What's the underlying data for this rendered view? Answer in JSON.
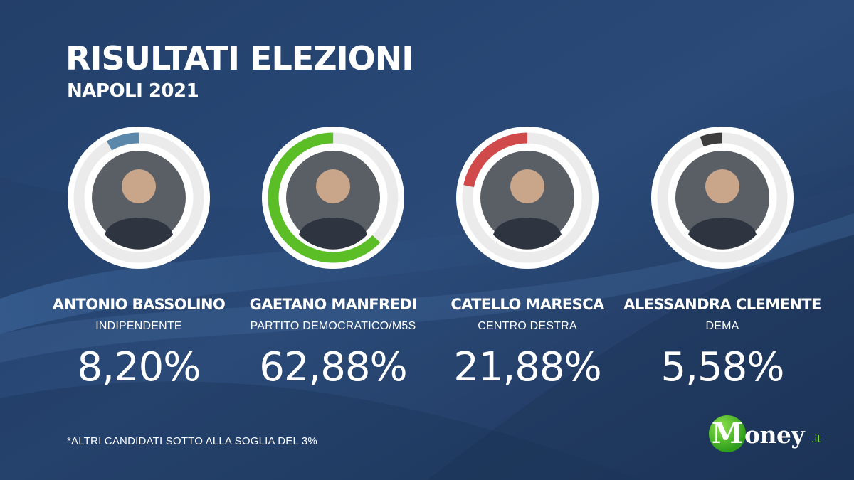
{
  "header": {
    "title": "RISULTATI ELEZIONI",
    "subtitle": "NAPOLI 2021"
  },
  "chart_data": {
    "type": "pie",
    "title": "RISULTATI ELEZIONI",
    "subtitle": "NAPOLI 2021",
    "unit": "%",
    "candidates": [
      {
        "name": "ANTONIO BASSOLINO",
        "party": "INDIPENDENTE",
        "value": 8.2,
        "label": "8,20%",
        "color": "#5b87ab"
      },
      {
        "name": "GAETANO MANFREDI",
        "party": "PARTITO DEMOCRATICO/M5S",
        "value": 62.88,
        "label": "62,88%",
        "color": "#5cbe26"
      },
      {
        "name": "CATELLO MARESCA",
        "party": "CENTRO DESTRA",
        "value": 21.88,
        "label": "21,88%",
        "color": "#d0494b"
      },
      {
        "name": "ALESSANDRA CLEMENTE",
        "party": "DEMA",
        "value": 5.58,
        "label": "5,58%",
        "color": "#3d3d3d"
      }
    ]
  },
  "footnote": "*ALTRI CANDIDATI SOTTO ALLA SOGLIA DEL 3%",
  "logo": {
    "initial": "M",
    "rest": "oney",
    "suffix": ".it",
    "accent_color": "#5cbe26"
  },
  "colors": {
    "background": "#26426b",
    "ring_track": "#ebebeb",
    "text": "#ffffff"
  }
}
